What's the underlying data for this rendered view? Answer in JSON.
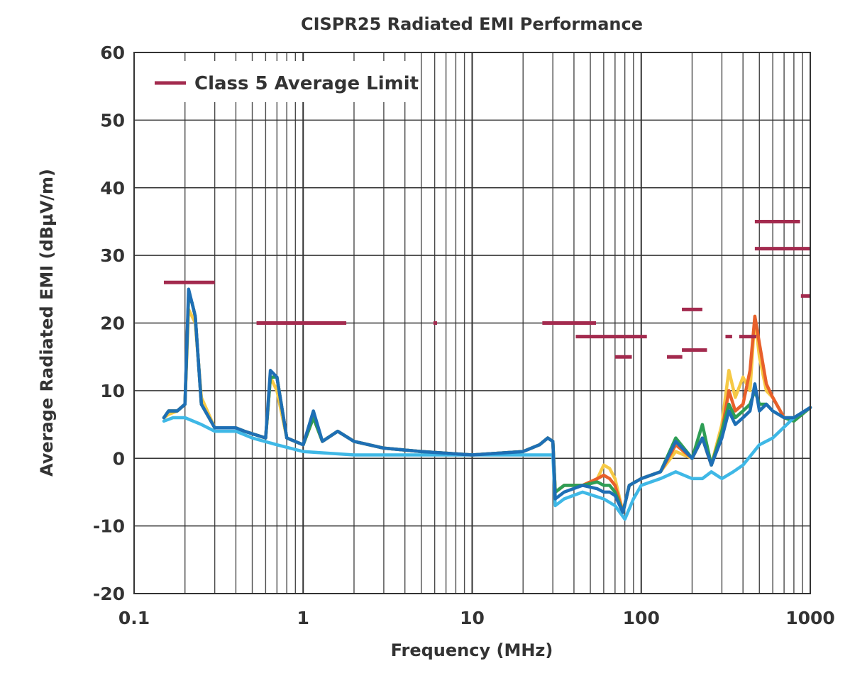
{
  "chart_data": {
    "type": "line",
    "title": "CISPR25 Radiated EMI Performance",
    "xlabel": "Frequency (MHz)",
    "ylabel": "Average Radiated EMI (dBµV/m)",
    "xscale": "log",
    "xlim": [
      0.1,
      1000
    ],
    "ylim": [
      -20,
      60
    ],
    "x_ticks": [
      0.1,
      1,
      10,
      100,
      1000
    ],
    "x_tick_labels": [
      "0.1",
      "1",
      "10",
      "100",
      "1000"
    ],
    "y_ticks": [
      -20,
      -10,
      0,
      10,
      20,
      30,
      40,
      50,
      60
    ],
    "y_tick_labels": [
      "-20",
      "-10",
      "0",
      "10",
      "20",
      "30",
      "40",
      "50",
      "60"
    ],
    "grid": true,
    "legend": {
      "position": "top-left",
      "entries": [
        "Class 5 Average Limit"
      ]
    },
    "limit_color": "#A32A4E",
    "limit_segments": [
      {
        "x": [
          0.15,
          0.3
        ],
        "y": 26
      },
      {
        "x": [
          0.53,
          1.8
        ],
        "y": 20
      },
      {
        "x": [
          5.9,
          6.2
        ],
        "y": 20
      },
      {
        "x": [
          26,
          54
        ],
        "y": 20
      },
      {
        "x": [
          41,
          108
        ],
        "y": 18
      },
      {
        "x": [
          70,
          88
        ],
        "y": 15
      },
      {
        "x": [
          142,
          175
        ],
        "y": 15
      },
      {
        "x": [
          174,
          230
        ],
        "y": 22
      },
      {
        "x": [
          174,
          245
        ],
        "y": 16
      },
      {
        "x": [
          315,
          345
        ],
        "y": 18
      },
      {
        "x": [
          380,
          480
        ],
        "y": 18
      },
      {
        "x": [
          470,
          870
        ],
        "y": 35
      },
      {
        "x": [
          470,
          1000
        ],
        "y": 31
      },
      {
        "x": [
          880,
          1000
        ],
        "y": 24
      }
    ],
    "series": [
      {
        "name": "trace-yellow",
        "color": "#F6C945",
        "x": [
          0.15,
          0.16,
          0.18,
          0.2,
          0.21,
          0.22,
          0.23,
          0.25,
          0.3,
          0.4,
          0.45,
          0.6,
          0.64,
          0.7,
          0.8,
          1.0,
          1.15,
          1.3,
          1.6,
          2,
          3,
          5,
          10,
          20,
          25,
          28,
          30,
          31,
          35,
          45,
          55,
          60,
          65,
          70,
          78,
          85,
          100,
          130,
          160,
          200,
          230,
          260,
          300,
          330,
          360,
          400,
          440,
          470,
          500,
          550,
          600,
          700,
          800,
          1000
        ],
        "y": [
          6,
          6.5,
          7,
          8,
          22,
          21,
          20,
          9,
          4.5,
          4.5,
          4,
          3,
          12,
          10,
          3,
          2,
          6,
          2.5,
          4,
          2.5,
          1.5,
          1,
          0.5,
          1,
          2,
          3,
          2.5,
          -5,
          -4,
          -4,
          -3,
          -1,
          -1.5,
          -3,
          -8,
          -4,
          -3,
          -2,
          1,
          0,
          3,
          -1,
          5,
          13,
          9,
          12,
          10,
          21,
          15,
          10,
          9,
          6,
          6,
          7.5
        ]
      },
      {
        "name": "trace-orange",
        "color": "#E8602B",
        "x": [
          0.15,
          0.16,
          0.18,
          0.2,
          0.21,
          0.22,
          0.23,
          0.25,
          0.3,
          0.4,
          0.45,
          0.6,
          0.64,
          0.7,
          0.8,
          1.0,
          1.15,
          1.3,
          1.6,
          2,
          3,
          5,
          10,
          20,
          25,
          28,
          30,
          31,
          35,
          45,
          55,
          60,
          65,
          70,
          78,
          85,
          100,
          130,
          160,
          200,
          230,
          260,
          300,
          330,
          360,
          400,
          440,
          470,
          500,
          550,
          600,
          700,
          800,
          1000
        ],
        "y": [
          6,
          7,
          7,
          8,
          24,
          23,
          21,
          8,
          4.5,
          4.5,
          4,
          3,
          12,
          12,
          3,
          2,
          6,
          2.5,
          4,
          2.5,
          1.5,
          1,
          0.5,
          1,
          2,
          3,
          2.5,
          -5,
          -4,
          -4,
          -3,
          -2.5,
          -3,
          -4,
          -8,
          -4,
          -3,
          -2,
          2,
          0,
          3,
          -1,
          4,
          10,
          7,
          8,
          13,
          21,
          17,
          11,
          9,
          6,
          5.5,
          7.5
        ]
      },
      {
        "name": "trace-green",
        "color": "#2E9E55",
        "x": [
          0.15,
          0.16,
          0.18,
          0.2,
          0.21,
          0.22,
          0.23,
          0.25,
          0.3,
          0.4,
          0.45,
          0.6,
          0.64,
          0.7,
          0.8,
          1.0,
          1.15,
          1.3,
          1.6,
          2,
          3,
          5,
          10,
          20,
          25,
          28,
          30,
          31,
          35,
          45,
          55,
          60,
          65,
          70,
          78,
          85,
          100,
          130,
          160,
          200,
          230,
          260,
          300,
          330,
          360,
          400,
          440,
          470,
          500,
          550,
          600,
          700,
          800,
          1000
        ],
        "y": [
          6,
          7,
          7,
          8,
          24,
          23,
          21,
          8,
          4.5,
          4.5,
          4,
          3,
          12,
          12,
          3,
          2,
          6,
          2.5,
          4,
          2.5,
          1.5,
          1,
          0.5,
          1,
          2,
          3,
          2.5,
          -5,
          -4,
          -4,
          -3.5,
          -4,
          -4,
          -5,
          -8,
          -4,
          -3,
          -2,
          3,
          0,
          5,
          -1,
          4,
          8,
          6,
          7,
          8,
          10,
          8,
          8,
          7,
          6,
          5.5,
          7.5
        ]
      },
      {
        "name": "trace-light-blue",
        "color": "#3FB8E6",
        "x": [
          0.15,
          0.17,
          0.2,
          0.25,
          0.3,
          0.4,
          0.5,
          0.7,
          1,
          2,
          5,
          10,
          20,
          28,
          30,
          31,
          35,
          45,
          60,
          70,
          80,
          90,
          100,
          130,
          160,
          200,
          230,
          260,
          300,
          350,
          400,
          500,
          600,
          800,
          1000
        ],
        "y": [
          5.5,
          6,
          6,
          5,
          4,
          4,
          3,
          2,
          1,
          0.5,
          0.5,
          0.5,
          0.5,
          0.5,
          0.5,
          -7,
          -6,
          -5,
          -6,
          -7,
          -9,
          -6,
          -4,
          -3,
          -2,
          -3,
          -3,
          -2,
          -3,
          -2,
          -1,
          2,
          3,
          6,
          7.5
        ]
      },
      {
        "name": "trace-dark-blue",
        "color": "#1E6FB5",
        "x": [
          0.15,
          0.16,
          0.18,
          0.2,
          0.21,
          0.22,
          0.23,
          0.25,
          0.3,
          0.4,
          0.45,
          0.6,
          0.64,
          0.7,
          0.8,
          1.0,
          1.15,
          1.3,
          1.6,
          2,
          3,
          5,
          10,
          20,
          25,
          28,
          30,
          31,
          35,
          45,
          55,
          60,
          65,
          70,
          78,
          85,
          100,
          130,
          160,
          200,
          230,
          260,
          300,
          330,
          360,
          400,
          440,
          470,
          500,
          550,
          600,
          700,
          800,
          1000
        ],
        "y": [
          6,
          7,
          7,
          8,
          25,
          23,
          21,
          8,
          4.5,
          4.5,
          4,
          3,
          13,
          12,
          3,
          2,
          7,
          2.5,
          4,
          2.5,
          1.5,
          1,
          0.5,
          1,
          2,
          3,
          2.5,
          -6,
          -5,
          -4,
          -4.5,
          -5,
          -5,
          -5.5,
          -8,
          -4,
          -3,
          -2,
          2.5,
          0,
          3,
          -1,
          3,
          7,
          5,
          6,
          7,
          11,
          7,
          8,
          7,
          6,
          6,
          7.5
        ]
      }
    ]
  }
}
